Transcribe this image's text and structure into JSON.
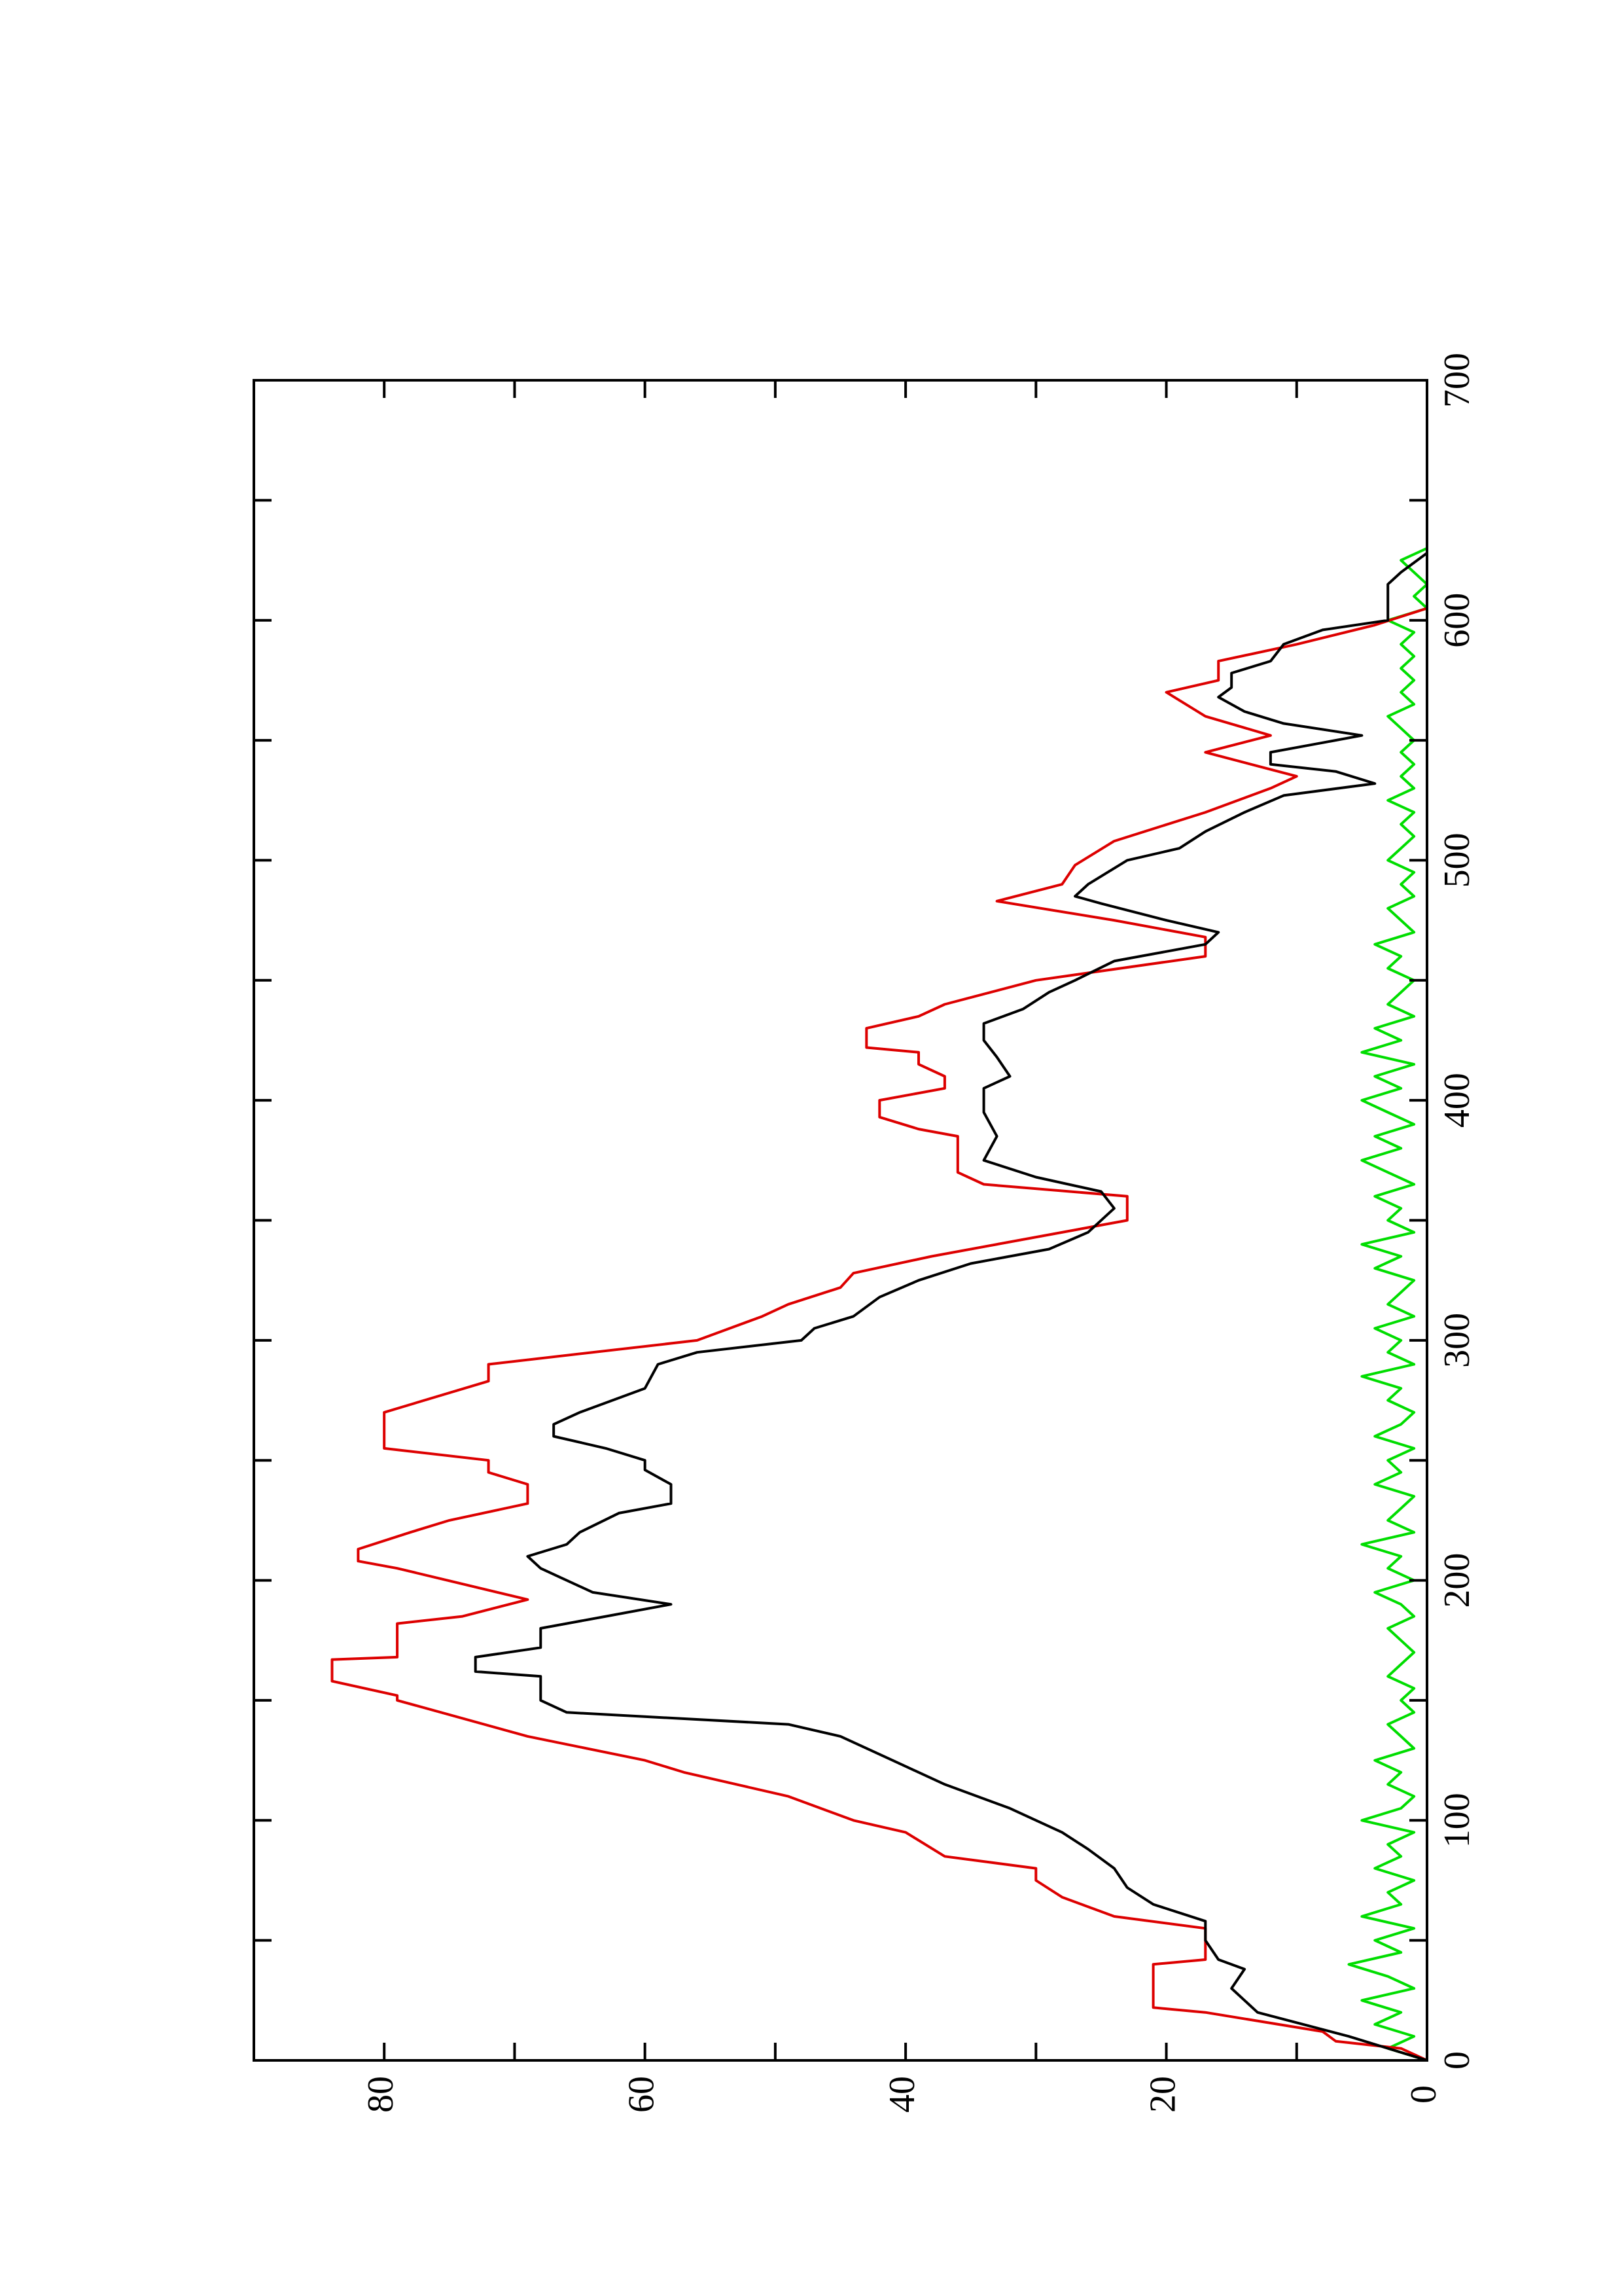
{
  "chart_data": {
    "type": "line",
    "rotated": true,
    "xlim": [
      0,
      700
    ],
    "xticks": [
      0,
      100,
      200,
      300,
      400,
      500,
      600,
      700
    ],
    "xminorticks": [
      50,
      150,
      250,
      350,
      450,
      550,
      650
    ],
    "ylim": [
      0,
      90
    ],
    "yticks": [
      0,
      20,
      40,
      60,
      80
    ],
    "yminorticks": [
      10,
      30,
      50,
      70
    ],
    "series": [
      {
        "color": "#00dd00",
        "x": [
          0,
          5,
          10,
          15,
          20,
          25,
          30,
          35,
          40,
          45,
          50,
          55,
          60,
          65,
          70,
          75,
          80,
          85,
          90,
          95,
          100,
          105,
          110,
          115,
          120,
          125,
          130,
          135,
          140,
          145,
          150,
          155,
          160,
          165,
          170,
          175,
          180,
          185,
          190,
          195,
          200,
          205,
          210,
          215,
          220,
          225,
          230,
          235,
          240,
          245,
          250,
          255,
          260,
          265,
          270,
          275,
          280,
          285,
          290,
          295,
          300,
          305,
          310,
          315,
          320,
          325,
          330,
          335,
          340,
          345,
          350,
          355,
          360,
          365,
          370,
          375,
          380,
          385,
          390,
          395,
          400,
          405,
          410,
          415,
          420,
          425,
          430,
          435,
          440,
          445,
          450,
          455,
          460,
          465,
          470,
          475,
          480,
          485,
          490,
          495,
          500,
          505,
          510,
          515,
          520,
          525,
          530,
          535,
          540,
          545,
          550,
          555,
          560,
          565,
          570,
          575,
          580,
          585,
          590,
          595,
          600,
          605,
          610,
          615,
          620,
          625,
          630
        ],
        "values": [
          0,
          3,
          1,
          4,
          2,
          5,
          1,
          3,
          6,
          2,
          4,
          1,
          5,
          2,
          3,
          1,
          4,
          2,
          3,
          1,
          5,
          2,
          1,
          3,
          2,
          4,
          1,
          2,
          3,
          1,
          2,
          1,
          3,
          2,
          1,
          2,
          3,
          1,
          2,
          4,
          1,
          3,
          2,
          5,
          1,
          3,
          2,
          1,
          4,
          2,
          3,
          1,
          4,
          2,
          1,
          3,
          2,
          5,
          1,
          3,
          2,
          4,
          1,
          3,
          2,
          1,
          4,
          2,
          5,
          1,
          3,
          2,
          4,
          1,
          3,
          5,
          2,
          4,
          1,
          3,
          5,
          2,
          4,
          1,
          5,
          2,
          4,
          1,
          3,
          2,
          1,
          3,
          2,
          4,
          1,
          2,
          3,
          1,
          2,
          1,
          3,
          2,
          1,
          2,
          1,
          3,
          1,
          2,
          1,
          2,
          1,
          2,
          3,
          1,
          2,
          1,
          2,
          1,
          2,
          1,
          3,
          0,
          1,
          0,
          1,
          2,
          0
        ]
      },
      {
        "color": "#dd0000",
        "x": [
          0,
          5,
          8,
          12,
          20,
          22,
          40,
          42,
          55,
          60,
          68,
          75,
          80,
          85,
          95,
          100,
          110,
          120,
          125,
          135,
          150,
          152,
          158,
          167,
          168,
          182,
          185,
          192,
          205,
          208,
          213,
          220,
          225,
          232,
          240,
          245,
          250,
          255,
          270,
          283,
          290,
          300,
          310,
          315,
          322,
          328,
          335,
          350,
          360,
          365,
          370,
          385,
          388,
          393,
          400,
          405,
          410,
          415,
          420,
          422,
          430,
          435,
          440,
          450,
          460,
          468,
          475,
          483,
          490,
          498,
          508,
          520,
          530,
          535,
          545,
          552,
          560,
          570,
          575,
          583,
          590,
          598,
          605
        ],
        "values": [
          0,
          2,
          7,
          8,
          17,
          21,
          21,
          17,
          17,
          24,
          28,
          30,
          30,
          37,
          40,
          44,
          49,
          57,
          60,
          69,
          79,
          79,
          84,
          84,
          79,
          79,
          74,
          69,
          79,
          82,
          82,
          78,
          75,
          69,
          69,
          72,
          72,
          80,
          80,
          72,
          72,
          56,
          51,
          49,
          45,
          44,
          38,
          23,
          23,
          34,
          36,
          36,
          39,
          42,
          42,
          37,
          37,
          39,
          39,
          43,
          43,
          39,
          37,
          30,
          17,
          17,
          24,
          33,
          28,
          27,
          24,
          17,
          12,
          10,
          17,
          12,
          17,
          20,
          16,
          16,
          10,
          4,
          0
        ]
      },
      {
        "color": "#000000",
        "x": [
          0,
          10,
          20,
          30,
          38,
          42,
          50,
          58,
          65,
          72,
          80,
          88,
          95,
          105,
          115,
          125,
          135,
          140,
          145,
          150,
          160,
          162,
          168,
          172,
          180,
          185,
          190,
          195,
          200,
          205,
          210,
          215,
          220,
          228,
          232,
          240,
          246,
          250,
          255,
          260,
          265,
          270,
          280,
          290,
          295,
          300,
          305,
          310,
          318,
          325,
          332,
          338,
          345,
          355,
          362,
          368,
          375,
          385,
          395,
          405,
          410,
          418,
          425,
          432,
          438,
          445,
          450,
          458,
          465,
          470,
          475,
          482,
          485,
          490,
          500,
          505,
          512,
          520,
          527,
          532,
          537,
          540,
          545,
          552,
          557,
          562,
          568,
          572,
          578,
          583,
          590,
          596,
          600,
          605,
          615,
          620,
          628
        ],
        "values": [
          0,
          6,
          13,
          15,
          14,
          16,
          17,
          17,
          21,
          23,
          24,
          26,
          28,
          32,
          37,
          41,
          45,
          49,
          66,
          68,
          68,
          73,
          73,
          68,
          68,
          63,
          58,
          64,
          66,
          68,
          69,
          66,
          65,
          62,
          58,
          58,
          60,
          60,
          63,
          67,
          67,
          65,
          60,
          59,
          56,
          48,
          47,
          44,
          42,
          39,
          35,
          29,
          26,
          24,
          25,
          30,
          34,
          33,
          34,
          34,
          32,
          33,
          34,
          34,
          31,
          29,
          27,
          24,
          17,
          16,
          20,
          25,
          27,
          26,
          23,
          19,
          17,
          14,
          11,
          4,
          7,
          12,
          12,
          5,
          11,
          14,
          16,
          15,
          15,
          12,
          11,
          8,
          3,
          3,
          3,
          2,
          0
        ]
      }
    ]
  }
}
